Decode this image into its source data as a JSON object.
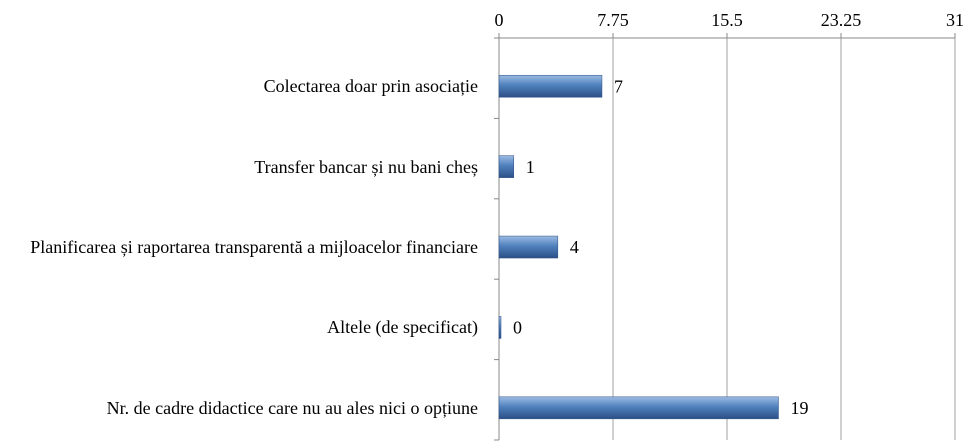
{
  "chart_data": {
    "type": "bar",
    "orientation": "horizontal",
    "categories": [
      "Colectarea doar prin asociație",
      "Transfer bancar și nu bani cheș",
      "Planificarea și raportarea transparentă a mijloacelor financiare",
      "Altele (de specificat)",
      "Nr. de cadre didactice care nu au ales nici o opțiune"
    ],
    "values": [
      7,
      1,
      4,
      0,
      19
    ],
    "color": "#4f81bd",
    "xlim": [
      0,
      31
    ],
    "xticks": [
      0,
      7.75,
      15.5,
      23.25,
      31
    ],
    "grid": true
  }
}
